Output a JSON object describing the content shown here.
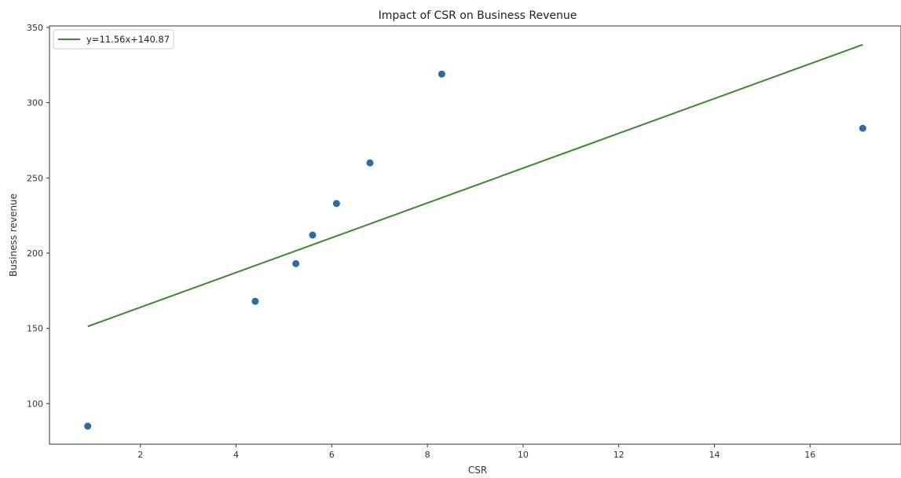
{
  "chart_data": {
    "type": "scatter",
    "title": "Impact of CSR on Business Revenue",
    "xlabel": "CSR",
    "ylabel": "Business revenue",
    "xlim": [
      0.1,
      17.9
    ],
    "ylim": [
      73,
      351
    ],
    "xticks": [
      2,
      4,
      6,
      8,
      10,
      12,
      14,
      16
    ],
    "yticks": [
      100,
      150,
      200,
      250,
      300,
      350
    ],
    "grid": false,
    "legend_position": "top-left",
    "points": {
      "color": "#2f6aa5",
      "x": [
        0.9,
        4.4,
        5.25,
        5.6,
        6.1,
        6.8,
        8.3,
        17.1
      ],
      "y": [
        85,
        168,
        193,
        212,
        233,
        260,
        319,
        283
      ]
    },
    "fit_line": {
      "label": "y=11.56x+140.87",
      "color": "#3a8a2e",
      "slope": 11.56,
      "intercept": 140.87,
      "x_range": [
        0.9,
        17.1
      ]
    }
  }
}
